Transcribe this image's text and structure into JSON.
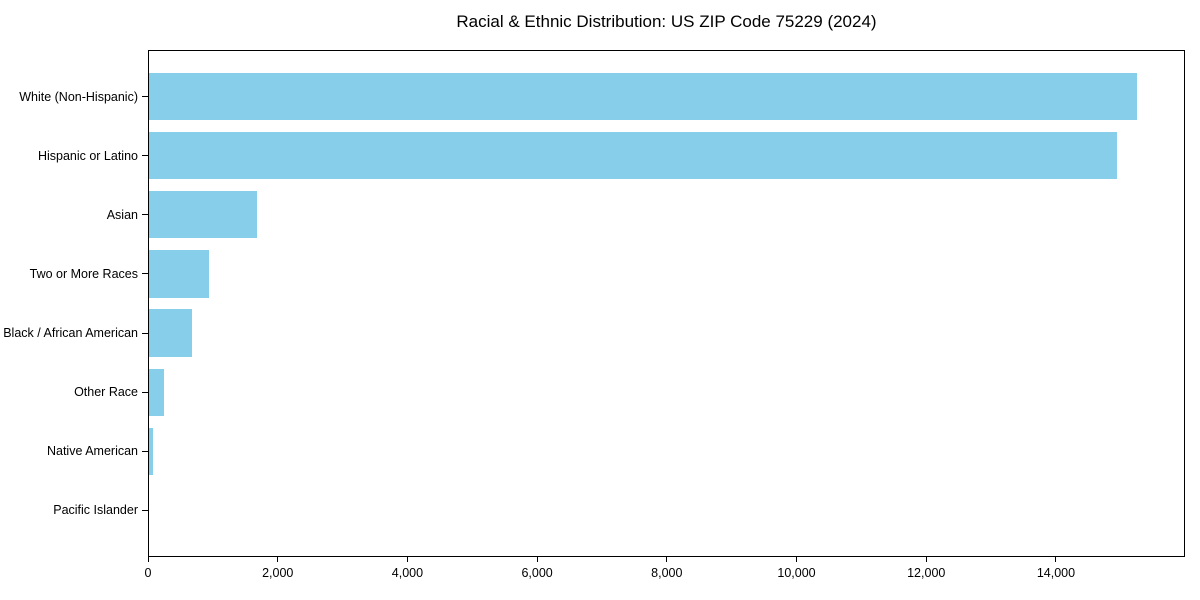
{
  "chart_data": {
    "type": "bar",
    "orientation": "horizontal",
    "title": "Racial & Ethnic Distribution: US ZIP Code 75229 (2024)",
    "categories": [
      "White (Non-Hispanic)",
      "Hispanic or Latino",
      "Asian",
      "Two or More Races",
      "Black / African American",
      "Other Race",
      "Native American",
      "Pacific Islander"
    ],
    "values": [
      15230,
      14930,
      1665,
      925,
      660,
      228,
      65,
      0
    ],
    "xlabel": "",
    "ylabel": "",
    "xlim": [
      0,
      15990
    ],
    "x_ticks": [
      0,
      2000,
      4000,
      6000,
      8000,
      10000,
      12000,
      14000
    ],
    "x_tick_labels": [
      "0",
      "2,000",
      "4,000",
      "6,000",
      "8,000",
      "10,000",
      "12,000",
      "14,000"
    ],
    "bar_color": "#87CEEB",
    "axis_color": "#000000",
    "background_color": "#ffffff",
    "grid": false,
    "legend": "none",
    "largest_at_top": true
  }
}
